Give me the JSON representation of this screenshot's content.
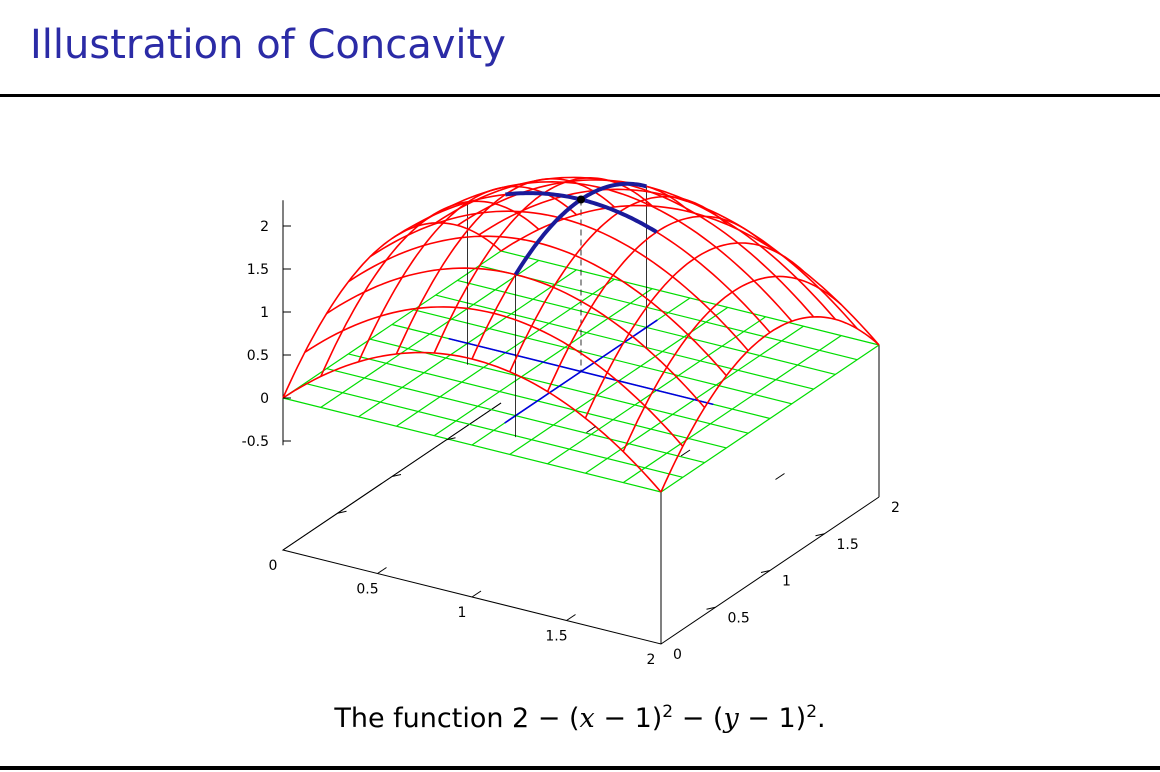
{
  "slide": {
    "title": "Illustration of Concavity",
    "caption": {
      "prefix": "The function 2 − (",
      "x": "x",
      "minus_one_a": " − 1)",
      "exp_a": "2",
      "mid": " − (",
      "y": "y",
      "minus_one_b": " − 1)",
      "exp_b": "2",
      "end": "."
    }
  },
  "chart_data": {
    "type": "surface",
    "title": "",
    "function": "2 - (x-1)^2 - (y-1)^2",
    "xlabel": "",
    "ylabel": "",
    "zlabel": "",
    "xlim": [
      0,
      2
    ],
    "ylim": [
      0,
      2
    ],
    "zlim": [
      -0.5,
      2
    ],
    "x_ticks": [
      "0",
      "0.5",
      "1",
      "1.5",
      "2"
    ],
    "y_ticks": [
      "0",
      "0.5",
      "1",
      "1.5",
      "2"
    ],
    "z_ticks": [
      "-0.5",
      "0",
      "0.5",
      "1",
      "1.5",
      "2"
    ],
    "grid_steps": [
      0,
      0.2,
      0.4,
      0.6,
      0.8,
      1.0,
      1.2,
      1.4,
      1.6,
      1.8,
      2.0
    ],
    "colors": {
      "surface": "#ff0000",
      "base_plane": "#00dd00",
      "highlight_curve": "#1a1a9a",
      "base_lines": "#0000dd",
      "axes": "#000000",
      "title": "#2b2ba6"
    },
    "highlight": {
      "point": [
        1,
        1,
        2
      ],
      "curve_along_y_at_x": 1,
      "curve_along_x_at_y": 1,
      "curve_along_y_range": [
        0.4,
        1.6
      ]
    }
  }
}
